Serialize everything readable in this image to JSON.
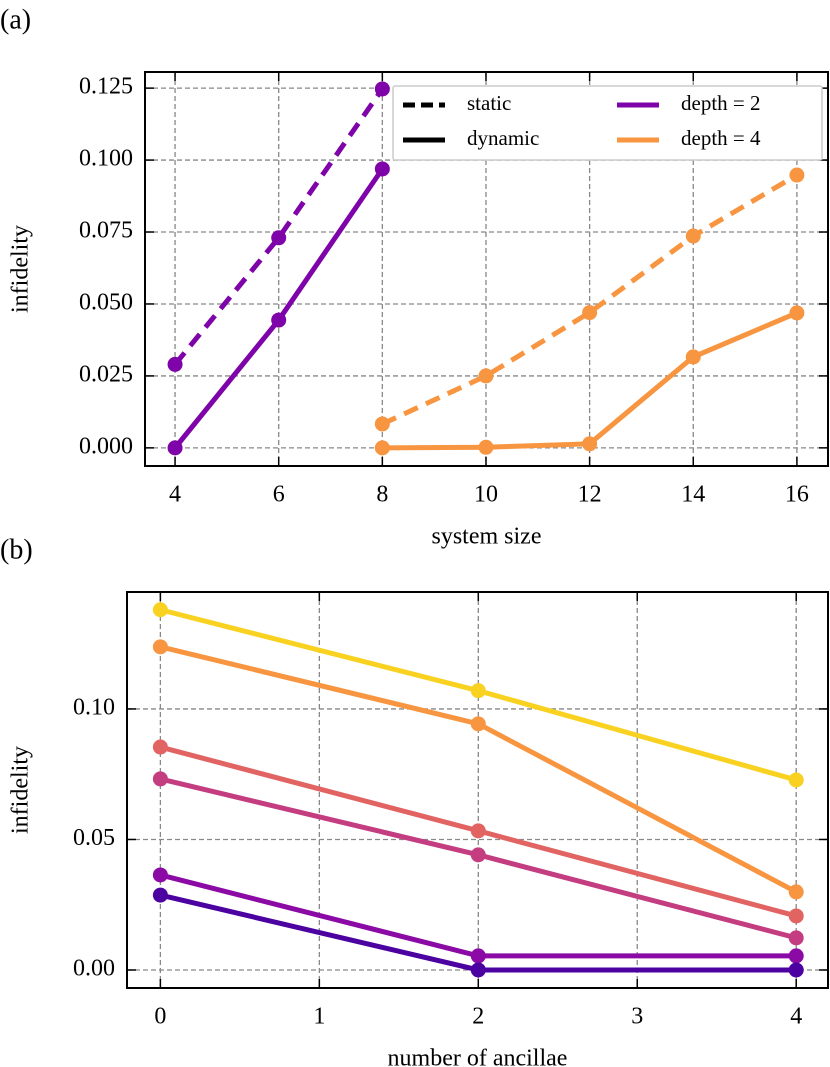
{
  "chart_data": [
    {
      "type": "line",
      "label": "(a)",
      "xlabel": "system size",
      "ylabel": "infidelity",
      "xlim": [
        3.42,
        16.6
      ],
      "ylim": [
        -0.0063,
        0.1306
      ],
      "xticks": [
        4,
        6,
        8,
        10,
        12,
        14,
        16
      ],
      "yticks": [
        {
          "value": 0,
          "label": "0.000"
        },
        {
          "value": 0.025,
          "label": "0.025"
        },
        {
          "value": 0.05,
          "label": "0.050"
        },
        {
          "value": 0.075,
          "label": "0.075"
        },
        {
          "value": 0.1,
          "label": "0.100"
        },
        {
          "value": 0.125,
          "label": "0.125"
        }
      ],
      "grid": true,
      "legend": {
        "loc": "upper right",
        "entries": [
          {
            "name": "static",
            "linestyle": "dashed",
            "color": "#000000"
          },
          {
            "name": "dynamic",
            "linestyle": "solid",
            "color": "#000000"
          },
          {
            "name": "depth = 2",
            "linestyle": "solid",
            "color": "#7e03a8"
          },
          {
            "name": "depth = 4",
            "linestyle": "solid",
            "color": "#f89540"
          }
        ]
      },
      "series": [
        {
          "color": "#7e03a8",
          "linestyle": "dashed",
          "x": [
            4,
            6,
            8
          ],
          "values": [
            0.029,
            0.073,
            0.1247
          ]
        },
        {
          "color": "#7e03a8",
          "linestyle": "solid",
          "x": [
            4,
            6,
            8
          ],
          "values": [
            0.0,
            0.0444,
            0.0969
          ]
        },
        {
          "color": "#f89540",
          "linestyle": "dashed",
          "x": [
            8,
            10,
            12,
            14,
            16
          ],
          "values": [
            0.0083,
            0.025,
            0.047,
            0.0736,
            0.0948
          ]
        },
        {
          "color": "#f89540",
          "linestyle": "solid",
          "x": [
            8,
            10,
            12,
            14,
            16
          ],
          "values": [
            0.0,
            0.0002,
            0.0014,
            0.0316,
            0.0469
          ]
        }
      ]
    },
    {
      "type": "line",
      "label": "(b)",
      "xlabel": "number of ancillae",
      "ylabel": "infidelity",
      "xlim": [
        -0.21,
        4.2
      ],
      "ylim": [
        -0.0069,
        0.1448
      ],
      "xticks": [
        0,
        1,
        2,
        3,
        4
      ],
      "yticks": [
        {
          "value": 0,
          "label": "0.00"
        },
        {
          "value": 0.05,
          "label": "0.05"
        },
        {
          "value": 0.1,
          "label": "0.10"
        }
      ],
      "grid": true,
      "series": [
        {
          "color": "#f9d221",
          "linestyle": "solid",
          "x": [
            0,
            2,
            4
          ],
          "values": [
            0.138,
            0.107,
            0.0728
          ]
        },
        {
          "color": "#f89540",
          "linestyle": "solid",
          "x": [
            0,
            2,
            4
          ],
          "values": [
            0.1238,
            0.0943,
            0.0299
          ]
        },
        {
          "color": "#e16462",
          "linestyle": "solid",
          "x": [
            0,
            2,
            4
          ],
          "values": [
            0.0854,
            0.0533,
            0.0207
          ]
        },
        {
          "color": "#c33d80",
          "linestyle": "solid",
          "x": [
            0,
            2,
            4
          ],
          "values": [
            0.0732,
            0.0441,
            0.0123
          ]
        },
        {
          "color": "#8b0aa5",
          "linestyle": "solid",
          "x": [
            0,
            2,
            4
          ],
          "values": [
            0.0364,
            0.0054,
            0.0054
          ]
        },
        {
          "color": "#4c02a1",
          "linestyle": "solid",
          "x": [
            0,
            2,
            4
          ],
          "values": [
            0.0287,
            0.0,
            0.0
          ]
        }
      ]
    }
  ]
}
